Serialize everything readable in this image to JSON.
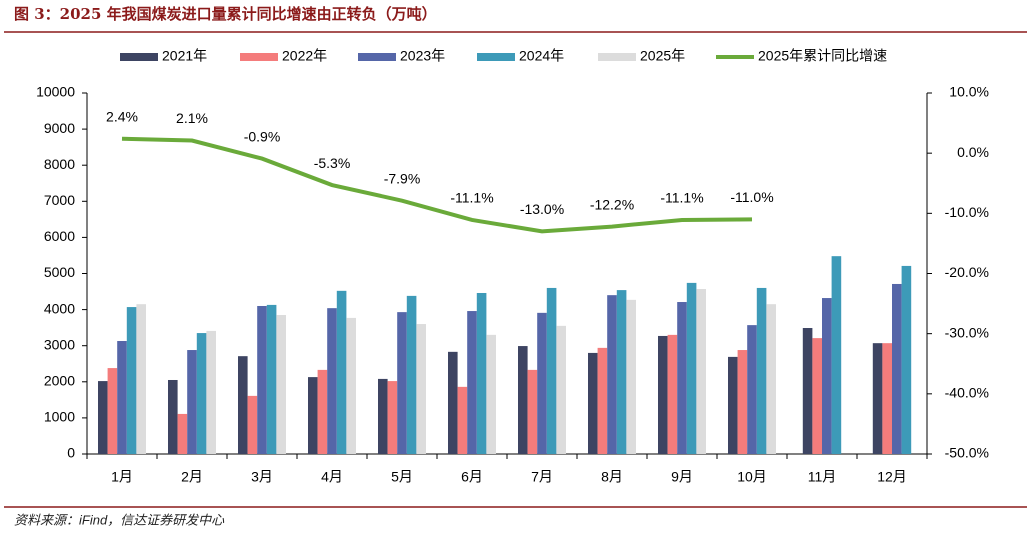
{
  "chart_data": {
    "type": "bar",
    "title": "图 3：2025 年我国煤炭进口量累计同比增速由正转负（万吨）",
    "source": "资料来源：iFind，信达证券研发中心",
    "categories": [
      "1月",
      "2月",
      "3月",
      "4月",
      "5月",
      "6月",
      "7月",
      "8月",
      "9月",
      "10月",
      "11月",
      "12月"
    ],
    "series": [
      {
        "name": "2021年",
        "color": "#3d4462",
        "values": [
          2020,
          2050,
          2710,
          2130,
          2080,
          2830,
          2990,
          2800,
          3270,
          2690,
          3490,
          3070
        ]
      },
      {
        "name": "2022年",
        "color": "#f47c7c",
        "values": [
          2380,
          1110,
          1610,
          2330,
          2020,
          1860,
          2330,
          2940,
          3300,
          2880,
          3210,
          3070
        ]
      },
      {
        "name": "2023年",
        "color": "#5566a8",
        "values": [
          3130,
          2880,
          4100,
          4040,
          3930,
          3960,
          3910,
          4400,
          4210,
          3570,
          4320,
          4710
        ]
      },
      {
        "name": "2024年",
        "color": "#3d9ab8",
        "values": [
          4070,
          3350,
          4130,
          4520,
          4380,
          4460,
          4600,
          4540,
          4740,
          4600,
          5480,
          5210
        ]
      },
      {
        "name": "2025年",
        "color": "#dcdcdc",
        "values": [
          4150,
          3410,
          3850,
          3770,
          3600,
          3300,
          3550,
          4270,
          4570,
          4150,
          null,
          null
        ]
      },
      {
        "name": "2025年累计同比增速",
        "color": "#6aaa3a",
        "type": "line",
        "axis": "y2",
        "values": [
          2.4,
          2.1,
          -0.9,
          -5.3,
          -7.9,
          -11.1,
          -13.0,
          -12.2,
          -11.1,
          -11.0,
          null,
          null
        ],
        "value_labels": [
          "2.4%",
          "2.1%",
          "-0.9%",
          "-5.3%",
          "-7.9%",
          "-11.1%",
          "-13.0%",
          "-12.2%",
          "-11.1%",
          "-11.0%",
          null,
          null
        ]
      }
    ],
    "ylim": [
      0,
      10000
    ],
    "yticks": [
      0,
      1000,
      2000,
      3000,
      4000,
      5000,
      6000,
      7000,
      8000,
      9000,
      10000
    ],
    "y2lim": [
      -50,
      10
    ],
    "y2ticks": [
      {
        "value": -50,
        "label": "-50.0%"
      },
      {
        "value": -40,
        "label": "-40.0%"
      },
      {
        "value": -30,
        "label": "-30.0%"
      },
      {
        "value": -20,
        "label": "-20.0%"
      },
      {
        "value": -10,
        "label": "-10.0%"
      },
      {
        "value": 0,
        "label": "0.0%"
      },
      {
        "value": 10,
        "label": "10.0%"
      }
    ],
    "legend": "top"
  }
}
